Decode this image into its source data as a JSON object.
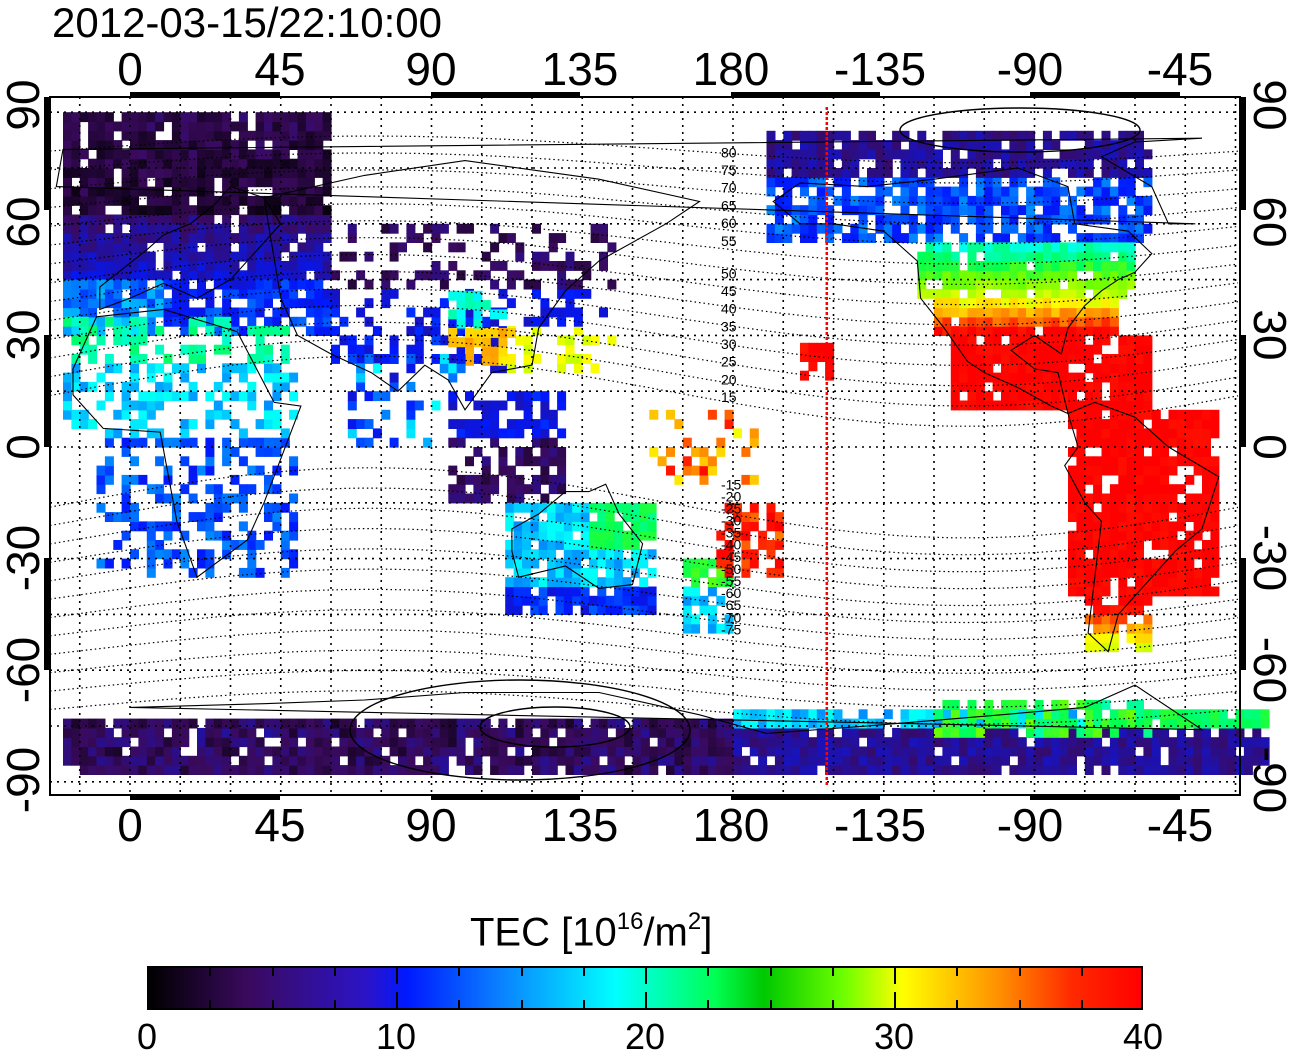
{
  "title": "2012-03-15/22:10:00",
  "top_lon_ticks": [
    "0",
    "45",
    "90",
    "135",
    "180",
    "-135",
    "-90",
    "-45"
  ],
  "bottom_lon_ticks": [
    "0",
    "45",
    "90",
    "135",
    "180",
    "-135",
    "-90",
    "-45"
  ],
  "left_lat_ticks": [
    "90",
    "60",
    "30",
    "0",
    "-30",
    "-60",
    "-90"
  ],
  "right_lat_ticks": [
    "90",
    "60",
    "30",
    "0",
    "-30",
    "-60",
    "-90"
  ],
  "contour_labels": [
    "80",
    "75",
    "70",
    "65",
    "60",
    "55",
    "50",
    "45",
    "40",
    "35",
    "30",
    "25",
    "20",
    "15",
    "-15",
    "-20",
    "-25",
    "-30",
    "-35",
    "-40",
    "-45",
    "-50",
    "-55",
    "-60",
    "-65",
    "-70",
    "-75"
  ],
  "colorbar": {
    "title_main": "TEC  [10",
    "title_sup1": "16",
    "title_mid": "/m",
    "title_sup2": "2",
    "title_end": "]",
    "ticks": [
      "0",
      "10",
      "20",
      "30",
      "40"
    ],
    "min": 0,
    "max": 40,
    "colors": [
      "#000000",
      "#3a0a5e",
      "#0019ff",
      "#00ffff",
      "#00ff55",
      "#ffff00",
      "#ff8c00",
      "#ff0000"
    ]
  },
  "map": {
    "lon_ticks_deg": [
      0,
      45,
      90,
      135,
      180,
      -135,
      -90,
      -45
    ],
    "lat_ticks_deg": [
      90,
      60,
      30,
      0,
      -30,
      -60,
      -90
    ],
    "terminator_lon": -152
  }
}
